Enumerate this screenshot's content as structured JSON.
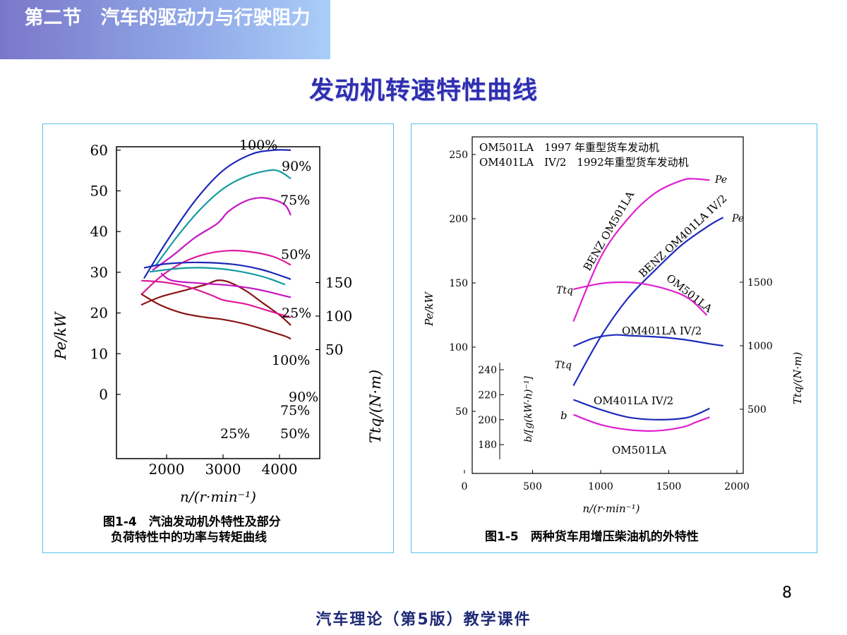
{
  "header": {
    "section_title": "第二节　汽车的驱动力与行驶阻力"
  },
  "slide_title": "发动机转速特性曲线",
  "page_number": "8",
  "footer": "汽车理论（第5版）教学课件",
  "chart_data": [
    {
      "type": "line",
      "caption_line1": "图1-4　汽油发动机外特性及部分",
      "caption_line2": "负荷特性中的功率与转矩曲线",
      "xlabel": "n/(r·min⁻¹)",
      "ylabel_left": "Pe/kW",
      "ylabel_right": "Ttq/(N·m)",
      "x_ticks": [
        "2000",
        "3000",
        "4000"
      ],
      "y_ticks_left": [
        "60",
        "50",
        "40",
        "30",
        "20",
        "10",
        "0"
      ],
      "y_ticks_right": [
        "150",
        "100",
        "50"
      ],
      "power_series": [
        {
          "label": "100%",
          "color": "#1d28b8",
          "points": [
            [
              1600,
              28.5
            ],
            [
              2000,
              37.5
            ],
            [
              2500,
              47.5
            ],
            [
              3000,
              55
            ],
            [
              3500,
              59
            ],
            [
              3900,
              60
            ],
            [
              4200,
              60
            ]
          ]
        },
        {
          "label": "90%",
          "color": "#139aa0",
          "points": [
            [
              1800,
              31.5
            ],
            [
              2200,
              39
            ],
            [
              2600,
              45.5
            ],
            [
              3000,
              50.5
            ],
            [
              3400,
              53.5
            ],
            [
              3800,
              55
            ],
            [
              4000,
              54.8
            ],
            [
              4200,
              53
            ]
          ]
        },
        {
          "label": "75%",
          "color": "#c417c4",
          "points": [
            [
              1750,
              30.5
            ],
            [
              2100,
              34
            ],
            [
              2500,
              38.5
            ],
            [
              2900,
              42
            ],
            [
              3100,
              45
            ],
            [
              3400,
              47.5
            ],
            [
              3650,
              48.3
            ],
            [
              3900,
              47.8
            ],
            [
              4100,
              46.5
            ],
            [
              4200,
              44
            ]
          ]
        },
        {
          "label": "50%",
          "color": "#df1a9a",
          "points": [
            [
              1550,
              24.5
            ],
            [
              1900,
              29
            ],
            [
              2300,
              32.5
            ],
            [
              2700,
              34.5
            ],
            [
              3100,
              35.3
            ],
            [
              3500,
              35
            ],
            [
              3900,
              33.8
            ],
            [
              4200,
              31.8
            ]
          ]
        },
        {
          "label": "25%",
          "color": "#8b1414",
          "points": [
            [
              1550,
              22
            ],
            [
              1900,
              24
            ],
            [
              2300,
              25.5
            ],
            [
              2700,
              27
            ],
            [
              2900,
              28
            ],
            [
              3100,
              27.6
            ],
            [
              3400,
              25.5
            ],
            [
              3700,
              22.5
            ],
            [
              4000,
              19.5
            ],
            [
              4200,
              17
            ]
          ]
        }
      ],
      "torque_series": [
        {
          "label": "100%",
          "color": "#1d28b8",
          "points": [
            [
              1600,
              172
            ],
            [
              2000,
              178
            ],
            [
              2600,
              180
            ],
            [
              3200,
              177
            ],
            [
              3700,
              169
            ],
            [
              4200,
              155
            ]
          ]
        },
        {
          "label": "90%",
          "color": "#139aa0",
          "points": [
            [
              1700,
              166
            ],
            [
              2200,
              171
            ],
            [
              2700,
              172
            ],
            [
              3200,
              168
            ],
            [
              3700,
              159
            ],
            [
              4100,
              147
            ]
          ]
        },
        {
          "label": "75%",
          "color": "#c417c4",
          "points": [
            [
              1900,
              164
            ],
            [
              2100,
              153
            ],
            [
              2600,
              149
            ],
            [
              3100,
              146
            ],
            [
              3600,
              140
            ],
            [
              4100,
              130
            ],
            [
              4200,
              128
            ]
          ]
        },
        {
          "label": "50%",
          "color": "#df1a9a",
          "points": [
            [
              1550,
              153
            ],
            [
              2000,
              150
            ],
            [
              2400,
              143
            ],
            [
              2800,
              131
            ],
            [
              3000,
              124
            ],
            [
              3400,
              118
            ],
            [
              3800,
              108
            ],
            [
              4200,
              98
            ]
          ]
        },
        {
          "label": "25%",
          "color": "#8b1414",
          "points": [
            [
              1550,
              133
            ],
            [
              1900,
              116
            ],
            [
              2300,
              104
            ],
            [
              2700,
              98
            ],
            [
              3000,
              95
            ],
            [
              3400,
              88
            ],
            [
              3800,
              78
            ],
            [
              4100,
              70
            ],
            [
              4200,
              66
            ]
          ]
        }
      ]
    },
    {
      "type": "line",
      "caption": "图1-5　两种货车用增压柴油机的外特性",
      "xlabel": "n/(r·min⁻¹)",
      "ylabel_left": "Pe/kW",
      "ylabel_right": "Ttq/(N·m)",
      "ylabel_inner": "b/[g(kW·h)⁻¹]",
      "legend_line1": "OM501LA　1997 年重型货车发动机",
      "legend_line2": "OM401LA　IV/2　1992年重型货车发动机",
      "x_ticks": [
        "0",
        "500",
        "1000",
        "1500",
        "2000"
      ],
      "y_ticks_left": [
        "250",
        "200",
        "150",
        "100",
        "50"
      ],
      "y_ticks_right": [
        "1500",
        "1000",
        "500"
      ],
      "b_ticks": [
        "240",
        "220",
        "200",
        "180"
      ],
      "annotations": {
        "pe_label_a": "Pe",
        "pe_label_b": "Pe",
        "benz_501": "BENZ OM501LA",
        "benz_401": "BENZ OM401LA IV/2",
        "ttq_label_a": "Ttq",
        "ttq_label_b": "Ttq",
        "om501_torque": "OM501LA",
        "om401_torque": "OM401LA IV/2",
        "om401_bsfc": "OM401LA IV/2",
        "om501_bsfc": "OM501LA",
        "b_label": "b"
      },
      "series": [
        {
          "name": "OM501LA Pe",
          "axis": "power",
          "color": "#e01fd0",
          "points": [
            [
              800,
              120
            ],
            [
              1000,
              170
            ],
            [
              1200,
              200
            ],
            [
              1400,
              220
            ],
            [
              1600,
              230
            ],
            [
              1700,
              231
            ],
            [
              1800,
              230
            ]
          ]
        },
        {
          "name": "OM401LA IV/2 Pe",
          "axis": "power",
          "color": "#1d2bbc",
          "points": [
            [
              800,
              70
            ],
            [
              1000,
              108
            ],
            [
              1200,
              138
            ],
            [
              1400,
              160
            ],
            [
              1600,
              180
            ],
            [
              1800,
              195
            ],
            [
              1900,
              201
            ]
          ]
        },
        {
          "name": "OM501LA Ttq",
          "axis": "torque",
          "color": "#e01fd0",
          "points": [
            [
              800,
              1445
            ],
            [
              1000,
              1490
            ],
            [
              1150,
              1500
            ],
            [
              1300,
              1490
            ],
            [
              1500,
              1440
            ],
            [
              1650,
              1370
            ],
            [
              1780,
              1240
            ]
          ]
        },
        {
          "name": "OM401LA IV/2 Ttq",
          "axis": "torque",
          "color": "#1d2bbc",
          "points": [
            [
              800,
              995
            ],
            [
              950,
              1060
            ],
            [
              1100,
              1085
            ],
            [
              1200,
              1080
            ],
            [
              1400,
              1070
            ],
            [
              1600,
              1050
            ],
            [
              1800,
              1015
            ],
            [
              1900,
              1000
            ]
          ]
        },
        {
          "name": "OM401LA IV/2 b",
          "axis": "bsfc",
          "color": "#1d2bbc",
          "points": [
            [
              800,
              216
            ],
            [
              1000,
              208
            ],
            [
              1200,
              202
            ],
            [
              1400,
              200
            ],
            [
              1600,
              201
            ],
            [
              1700,
              204
            ],
            [
              1800,
              209
            ]
          ]
        },
        {
          "name": "OM501LA b",
          "axis": "bsfc",
          "color": "#e01fd0",
          "points": [
            [
              800,
              204
            ],
            [
              1000,
              196
            ],
            [
              1200,
              192
            ],
            [
              1400,
              191
            ],
            [
              1600,
              194
            ],
            [
              1700,
              198
            ],
            [
              1800,
              202
            ]
          ]
        }
      ]
    }
  ]
}
